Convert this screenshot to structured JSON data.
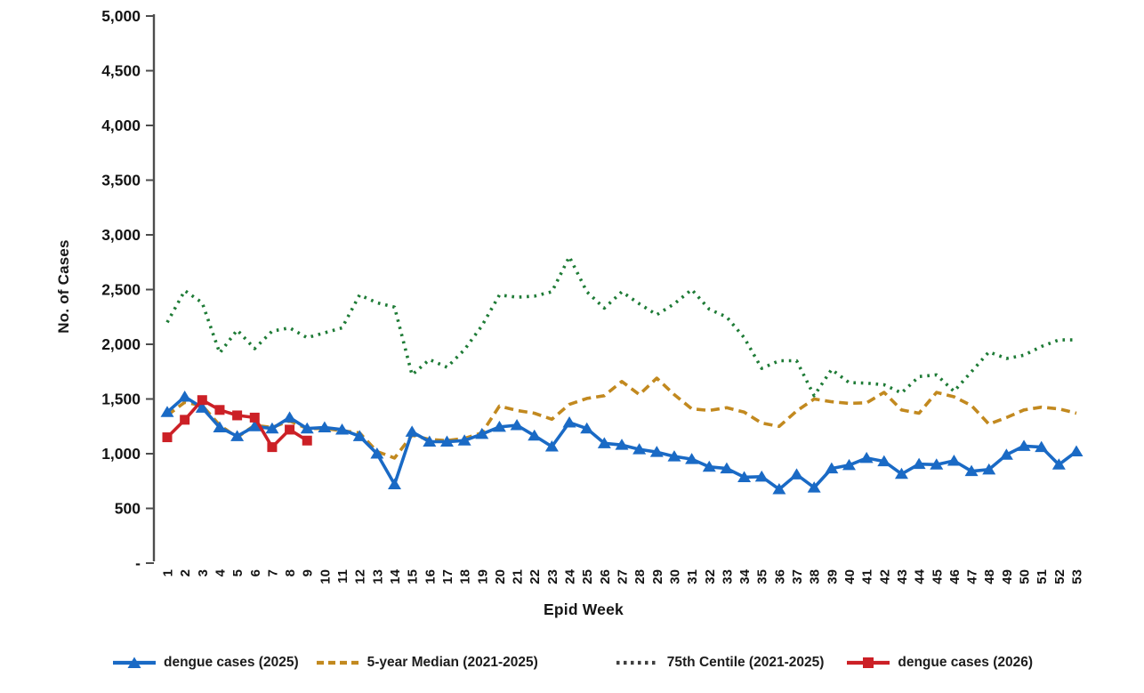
{
  "axes": {
    "y_title": "No. of Cases",
    "x_title": "Epid Week",
    "y_ticks": [
      {
        "label": "5,000",
        "value": 5000
      },
      {
        "label": "4,500",
        "value": 4500
      },
      {
        "label": "4,000",
        "value": 4000
      },
      {
        "label": "3,500",
        "value": 3500
      },
      {
        "label": "3,000",
        "value": 3000
      },
      {
        "label": "2,500",
        "value": 2500
      },
      {
        "label": "2,000",
        "value": 2000
      },
      {
        "label": "1,500",
        "value": 1500
      },
      {
        "label": "1,000",
        "value": 1000
      },
      {
        "label": "500",
        "value": 500
      },
      {
        "label": "-",
        "value": 0
      }
    ],
    "weeks": [
      1,
      2,
      3,
      4,
      5,
      6,
      7,
      8,
      9,
      10,
      11,
      12,
      13,
      14,
      15,
      16,
      17,
      18,
      19,
      20,
      21,
      22,
      23,
      24,
      25,
      26,
      27,
      28,
      29,
      30,
      31,
      32,
      33,
      34,
      35,
      36,
      37,
      38,
      39,
      40,
      41,
      42,
      43,
      44,
      45,
      46,
      47,
      48,
      49,
      50,
      51,
      52,
      53
    ]
  },
  "chart_data": {
    "type": "line",
    "xlabel": "Epid Week",
    "ylabel": "No. of Cases",
    "ylim": [
      0,
      5000
    ],
    "x": [
      1,
      2,
      3,
      4,
      5,
      6,
      7,
      8,
      9,
      10,
      11,
      12,
      13,
      14,
      15,
      16,
      17,
      18,
      19,
      20,
      21,
      22,
      23,
      24,
      25,
      26,
      27,
      28,
      29,
      30,
      31,
      32,
      33,
      34,
      35,
      36,
      37,
      38,
      39,
      40,
      41,
      42,
      43,
      44,
      45,
      46,
      47,
      48,
      49,
      50,
      51,
      52,
      53
    ],
    "grid": false,
    "legend_position": "bottom",
    "series": [
      {
        "key": "centile-75",
        "name": "75th Centile (2021-2025)",
        "color": "#1e7b36",
        "legend_color": "#3f3f3f",
        "style": "dotted",
        "marker": "none",
        "values": [
          2200,
          2490,
          2380,
          1920,
          2130,
          1960,
          2120,
          2150,
          2060,
          2105,
          2150,
          2450,
          2380,
          2340,
          1720,
          1860,
          1790,
          1950,
          2170,
          2450,
          2430,
          2440,
          2480,
          2800,
          2480,
          2330,
          2480,
          2370,
          2270,
          2370,
          2500,
          2320,
          2250,
          2060,
          1780,
          1850,
          1850,
          1530,
          1770,
          1650,
          1645,
          1630,
          1555,
          1705,
          1720,
          1570,
          1750,
          1930,
          1870,
          1900,
          1980,
          2040,
          2040
        ]
      },
      {
        "key": "median-5yr",
        "name": "5-year Median (2021-2025)",
        "color": "#c2891f",
        "style": "dashed",
        "marker": "none",
        "values": [
          1350,
          1470,
          1440,
          1260,
          1150,
          1260,
          1240,
          1300,
          1230,
          1230,
          1210,
          1190,
          1020,
          960,
          1170,
          1130,
          1120,
          1140,
          1190,
          1435,
          1395,
          1370,
          1315,
          1450,
          1505,
          1530,
          1660,
          1540,
          1690,
          1540,
          1410,
          1395,
          1420,
          1380,
          1280,
          1250,
          1390,
          1500,
          1475,
          1460,
          1465,
          1560,
          1400,
          1370,
          1560,
          1520,
          1440,
          1270,
          1330,
          1400,
          1425,
          1410,
          1370
        ]
      },
      {
        "key": "dengue-2025",
        "name": "dengue cases (2025)",
        "color": "#1a6ac5",
        "style": "solid",
        "marker": "triangle",
        "values": [
          1380,
          1520,
          1420,
          1240,
          1160,
          1250,
          1230,
          1330,
          1230,
          1240,
          1220,
          1160,
          1000,
          720,
          1200,
          1110,
          1110,
          1120,
          1180,
          1245,
          1260,
          1165,
          1065,
          1285,
          1230,
          1095,
          1080,
          1040,
          1015,
          975,
          950,
          880,
          865,
          785,
          790,
          675,
          810,
          690,
          865,
          895,
          960,
          930,
          815,
          905,
          900,
          935,
          840,
          855,
          990,
          1070,
          1060,
          900,
          1020
        ]
      },
      {
        "key": "dengue-2026",
        "name": "dengue cases (2026)",
        "color": "#cc2026",
        "style": "solid",
        "marker": "square",
        "values": [
          1150,
          1310,
          1490,
          1400,
          1350,
          1330,
          1060,
          1220,
          1120
        ]
      }
    ],
    "legend_order": [
      "dengue-2025",
      "median-5yr",
      "centile-75",
      "dengue-2026"
    ]
  }
}
